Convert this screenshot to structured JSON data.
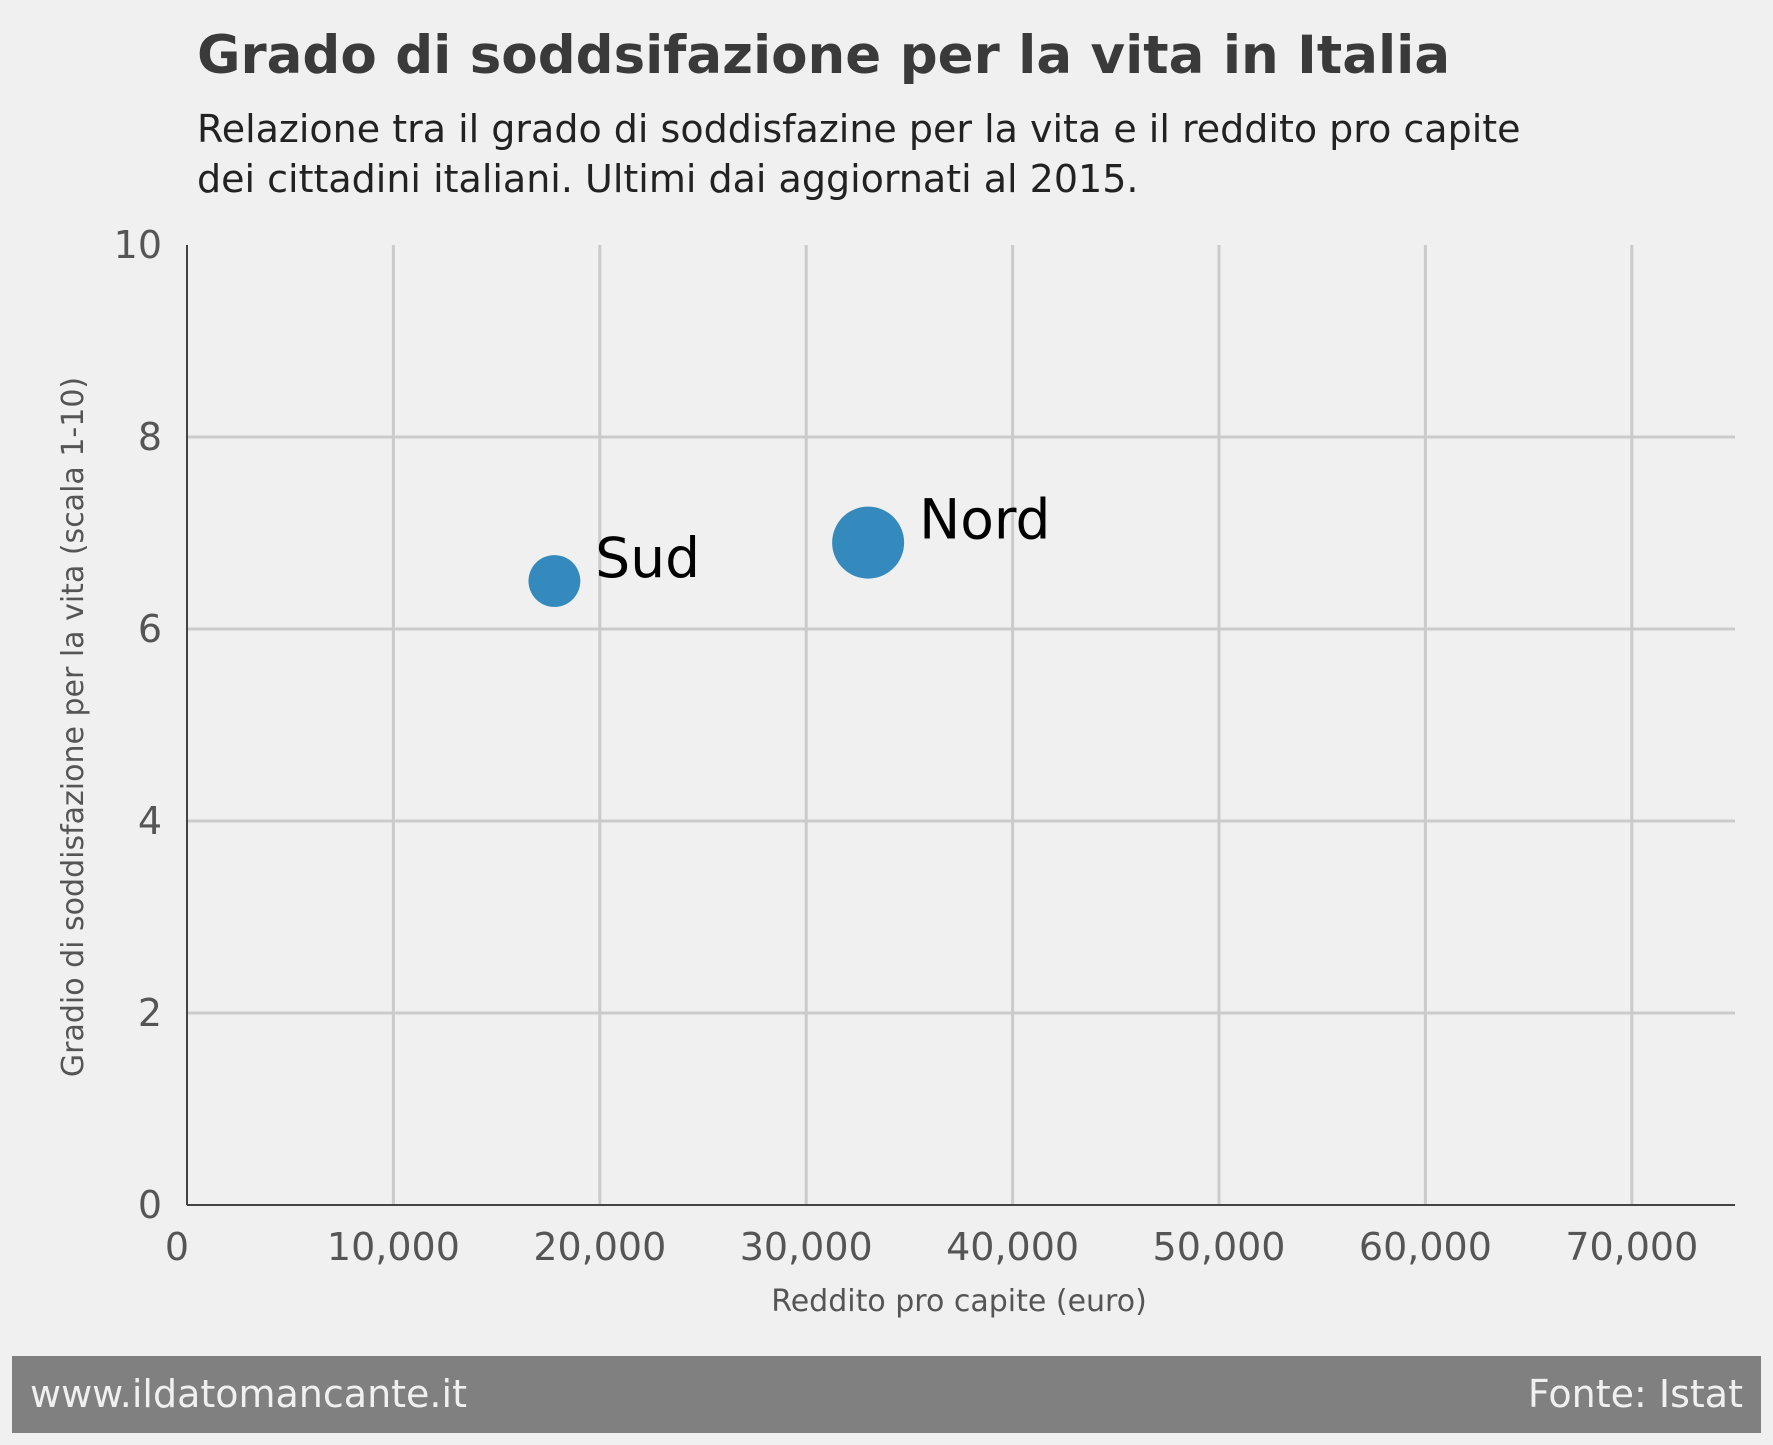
{
  "chart_data": {
    "type": "scatter",
    "title": "Grado di soddsifazione per la vita in Italia",
    "subtitle_lines": [
      "Relazione tra il grado di soddisfazine per la vita e il reddito pro capite",
      "dei cittadini italiani. Ultimi dai aggiornati al 2015."
    ],
    "xlabel": "Reddito pro capite (euro)",
    "ylabel": "Gradio di soddisfazione per la vita (scala 1-10)",
    "xlim": [
      0,
      75000
    ],
    "ylim": [
      0,
      10
    ],
    "x_ticks": [
      0,
      10000,
      20000,
      30000,
      40000,
      50000,
      60000,
      70000
    ],
    "x_tick_labels": [
      "0",
      "10,000",
      "20,000",
      "30,000",
      "40,000",
      "50,000",
      "60,000",
      "70,000"
    ],
    "y_ticks": [
      0,
      2,
      4,
      6,
      8,
      10
    ],
    "y_tick_labels": [
      "0",
      "2",
      "4",
      "6",
      "8",
      "10"
    ],
    "grid": true,
    "marker_color": "#348abd",
    "points": [
      {
        "label": "Sud",
        "x": 17800,
        "y": 6.5,
        "relative_size": 0.72
      },
      {
        "label": "Nord",
        "x": 33000,
        "y": 6.9,
        "relative_size": 1.0
      }
    ]
  },
  "footer": {
    "site": "www.ildatomancante.it",
    "source": "Fonte: Istat"
  },
  "colors": {
    "background": "#f0f0f0",
    "footer_background": "#808080",
    "footer_text": "#f0f0f0",
    "grid": "#cbcbcb",
    "marker": "#348abd"
  }
}
